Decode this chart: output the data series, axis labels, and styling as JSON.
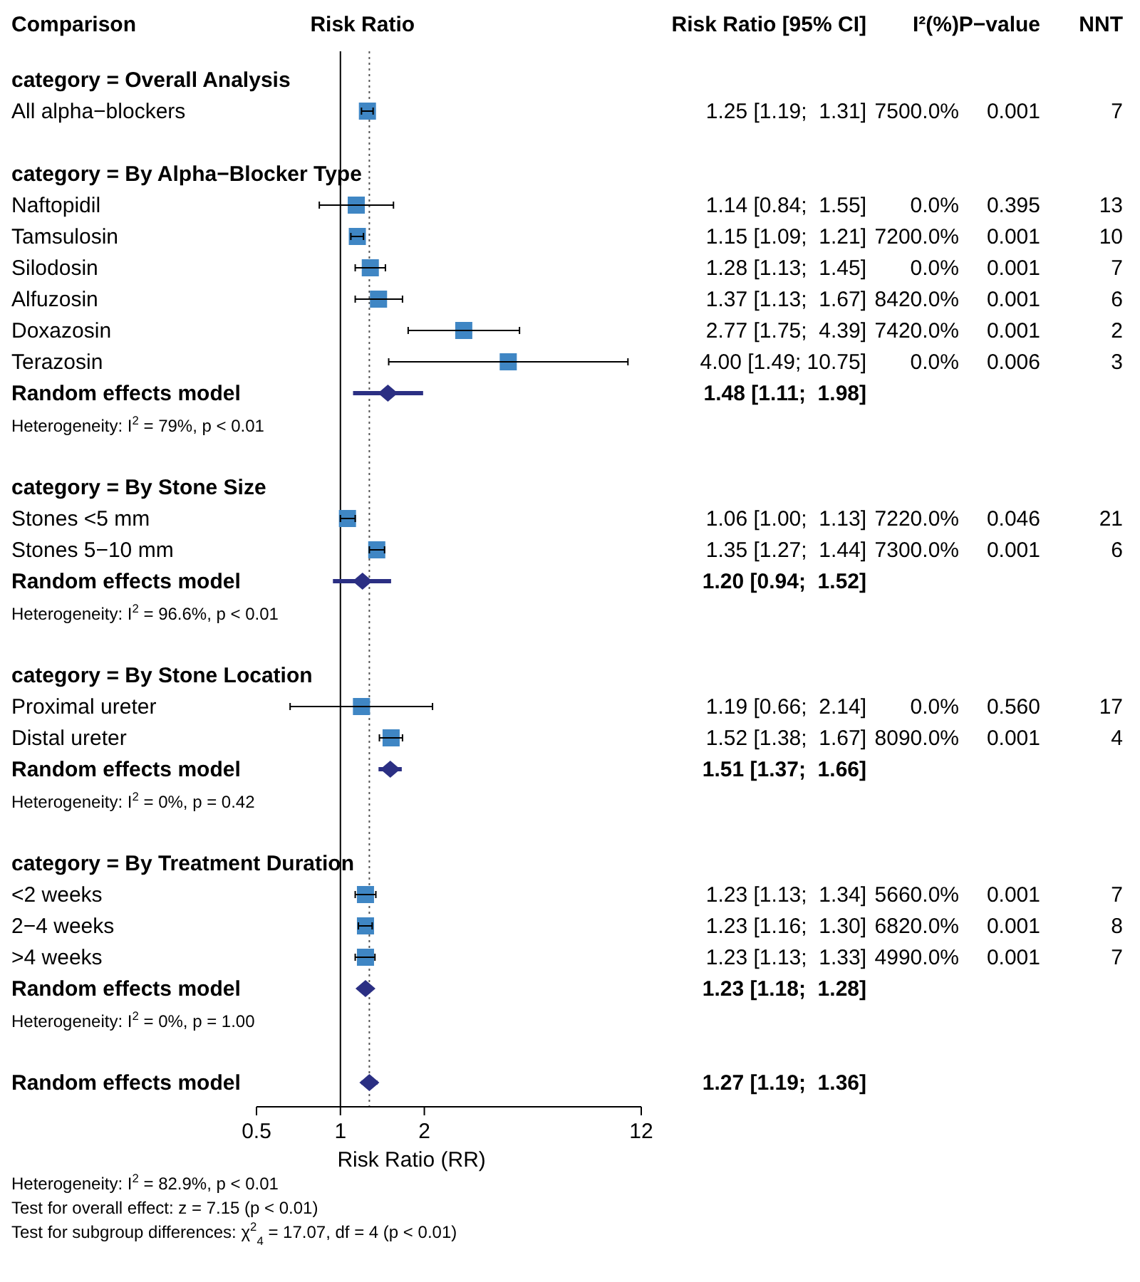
{
  "chart_data": [
    {
      "type": "scatter",
      "title": "Risk Ratio",
      "ylabel": "Comparison",
      "xlabel": "Risk Ratio (RR)",
      "orientation": "horizontal",
      "log": "x",
      "xlim": [
        0.5,
        12
      ],
      "xticks": [
        0.5,
        1,
        2,
        12
      ],
      "categories": [
        "category = Overall Analysis",
        "All alpha−blockers",
        null,
        "category = By Alpha−Blocker Type",
        "Naftopidil",
        "Tamsulosin",
        "Silodosin",
        "Alfuzosin",
        "Doxazosin",
        "Terazosin",
        "Random effects model",
        "Heterogeneity: I$^{2}$ = 79%, p < 0.01",
        null,
        "category = By Stone Size",
        "Stones <5 mm",
        "Stones 5−10 mm",
        "Random effects model",
        "Heterogeneity: I$^{2}$ = 96.6%, p < 0.01",
        null,
        "category = By Stone Location",
        "Proximal ureter",
        "Distal ureter",
        "Random effects model",
        "Heterogeneity: I$^{2}$ = 0%, p = 0.42",
        null,
        "category = By Treatment Duration",
        "<2 weeks",
        "2−4 weeks",
        ">4 weeks",
        "Random effects model",
        "Heterogeneity: I$^{2}$ = 0%, p = 1.00",
        null,
        "Random effects model"
      ],
      "series": [
        {
          "color": "#3f86c4",
          "marker": "square",
          "values": [
            null,
            1.25,
            null,
            null,
            1.14,
            1.15,
            1.28,
            1.37,
            2.77,
            4.0,
            null,
            null,
            null,
            null,
            1.06,
            1.35,
            null,
            null,
            null,
            null,
            1.19,
            1.52,
            null,
            null,
            null,
            null,
            1.23,
            1.23,
            1.23,
            null,
            null,
            null,
            null
          ],
          "errors": [
            null,
            [
              1.19,
              1.31
            ],
            null,
            null,
            [
              0.84,
              1.55
            ],
            [
              1.09,
              1.21
            ],
            [
              1.13,
              1.45
            ],
            [
              1.13,
              1.67
            ],
            [
              1.75,
              4.39
            ],
            [
              1.49,
              10.75
            ],
            null,
            null,
            null,
            null,
            [
              1.0,
              1.13
            ],
            [
              1.27,
              1.44
            ],
            null,
            null,
            null,
            null,
            [
              0.66,
              2.14
            ],
            [
              1.38,
              1.67
            ],
            null,
            null,
            null,
            null,
            [
              1.13,
              1.34
            ],
            [
              1.16,
              1.3
            ],
            [
              1.13,
              1.33
            ],
            null,
            null,
            null,
            null
          ]
        },
        {
          "color": "#2b2f83",
          "marker": "diamond",
          "values": [
            null,
            null,
            null,
            null,
            null,
            null,
            null,
            null,
            null,
            null,
            1.48,
            null,
            null,
            null,
            null,
            null,
            1.2,
            null,
            null,
            null,
            null,
            null,
            1.51,
            null,
            null,
            null,
            null,
            null,
            null,
            1.23,
            null,
            null,
            1.27
          ],
          "errors": [
            null,
            null,
            null,
            null,
            null,
            null,
            null,
            null,
            null,
            null,
            [
              1.11,
              1.98
            ],
            null,
            null,
            null,
            null,
            null,
            [
              0.94,
              1.52
            ],
            null,
            null,
            null,
            null,
            null,
            [
              1.37,
              1.66
            ],
            null,
            null,
            null,
            null,
            null,
            null,
            [
              1.18,
              1.28
            ],
            null,
            null,
            [
              1.19,
              1.36
            ]
          ]
        }
      ],
      "ref_lines": [
        {
          "axis": "x",
          "value": 1,
          "color": "#000000",
          "line_style": "solid"
        },
        {
          "axis": "x",
          "value": 1.27,
          "color": "#555555",
          "line_style": "dotted"
        }
      ],
      "annotations": [
        "Heterogeneity: I$^{2}$ = 82.9%, p < 0.01",
        "Test for overall effect: z = 7.15 (p < 0.01)",
        "Test for subgroup differences: χ$^{2}$$_{4}$ = 17.07, df = 4 (p < 0.01)"
      ]
    },
    {
      "type": "other",
      "categories": [
        "Risk Ratio [95% CI]",
        "I²(%)",
        "P−value",
        "NNT"
      ],
      "cell_labels": [
        [
          null,
          null,
          null,
          null
        ],
        [
          "1.25 [1.19;  1.31]",
          "7500.0%",
          "0.001",
          "7"
        ],
        [
          null,
          null,
          null,
          null
        ],
        [
          null,
          null,
          null,
          null
        ],
        [
          "1.14 [0.84;  1.55]",
          "0.0%",
          "0.395",
          "13"
        ],
        [
          "1.15 [1.09;  1.21]",
          "7200.0%",
          "0.001",
          "10"
        ],
        [
          "1.28 [1.13;  1.45]",
          "0.0%",
          "0.001",
          "7"
        ],
        [
          "1.37 [1.13;  1.67]",
          "8420.0%",
          "0.001",
          "6"
        ],
        [
          "2.77 [1.75;  4.39]",
          "7420.0%",
          "0.001",
          "2"
        ],
        [
          "4.00 [1.49; 10.75]",
          "0.0%",
          "0.006",
          "3"
        ],
        [
          "1.48 [1.11;  1.98]",
          null,
          null,
          null
        ],
        [
          null,
          null,
          null,
          null
        ],
        [
          null,
          null,
          null,
          null
        ],
        [
          null,
          null,
          null,
          null
        ],
        [
          "1.06 [1.00;  1.13]",
          "7220.0%",
          "0.046",
          "21"
        ],
        [
          "1.35 [1.27;  1.44]",
          "7300.0%",
          "0.001",
          "6"
        ],
        [
          "1.20 [0.94;  1.52]",
          null,
          null,
          null
        ],
        [
          null,
          null,
          null,
          null
        ],
        [
          null,
          null,
          null,
          null
        ],
        [
          null,
          null,
          null,
          null
        ],
        [
          "1.19 [0.66;  2.14]",
          "0.0%",
          "0.560",
          "17"
        ],
        [
          "1.52 [1.38;  1.67]",
          "8090.0%",
          "0.001",
          "4"
        ],
        [
          "1.51 [1.37;  1.66]",
          null,
          null,
          null
        ],
        [
          null,
          null,
          null,
          null
        ],
        [
          null,
          null,
          null,
          null
        ],
        [
          null,
          null,
          null,
          null
        ],
        [
          "1.23 [1.13;  1.34]",
          "5660.0%",
          "0.001",
          "7"
        ],
        [
          "1.23 [1.16;  1.30]",
          "6820.0%",
          "0.001",
          "8"
        ],
        [
          "1.23 [1.13;  1.33]",
          "4990.0%",
          "0.001",
          "7"
        ],
        [
          "1.23 [1.18;  1.28]",
          null,
          null,
          null
        ],
        [
          null,
          null,
          null,
          null
        ],
        [
          null,
          null,
          null,
          null
        ],
        [
          "1.27 [1.19;  1.36]",
          null,
          null,
          null
        ]
      ]
    }
  ]
}
